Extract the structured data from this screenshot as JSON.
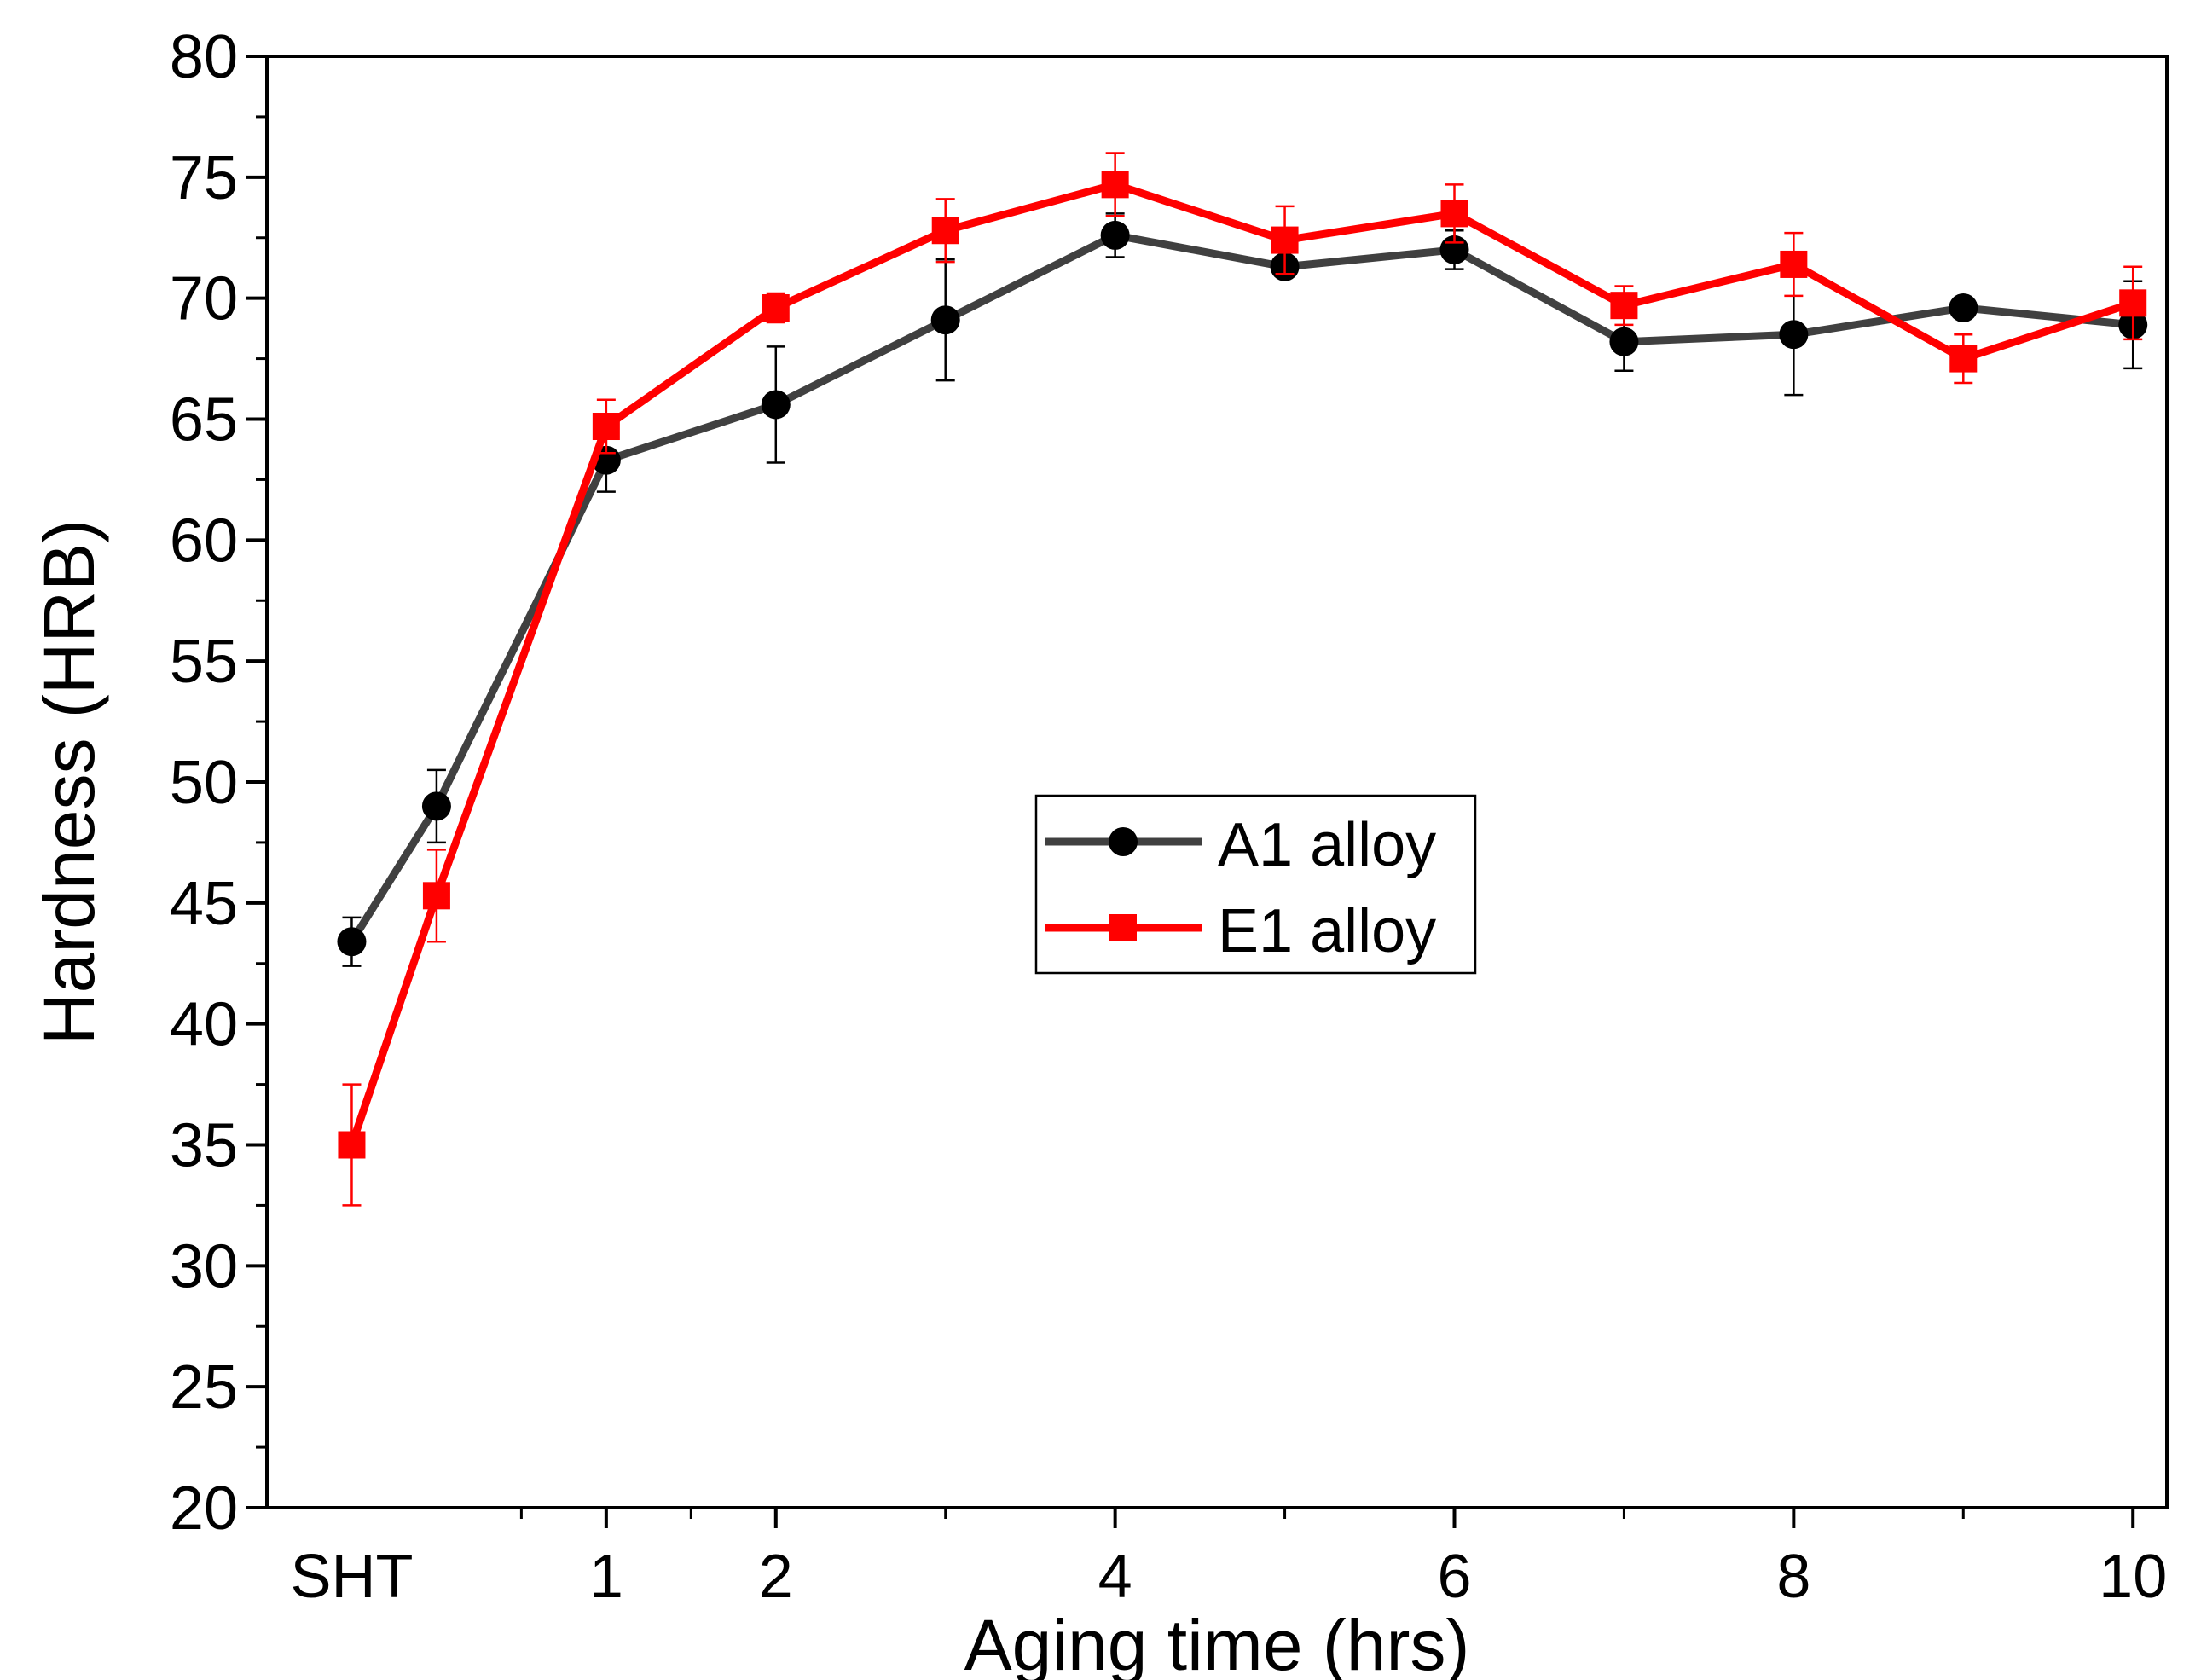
{
  "chart_data": {
    "type": "line",
    "title": "",
    "xlabel": "Aging time (hrs)",
    "ylabel": "Hardness (HRB)",
    "ylim": [
      20,
      80
    ],
    "xlim": [
      -1,
      10.2
    ],
    "yticks": [
      20,
      25,
      30,
      35,
      40,
      45,
      50,
      55,
      60,
      65,
      70,
      75,
      80
    ],
    "xticks": [
      {
        "x": -0.5,
        "label": "SHT"
      },
      {
        "x": 1,
        "label": "1"
      },
      {
        "x": 2,
        "label": "2"
      },
      {
        "x": 4,
        "label": "4"
      },
      {
        "x": 6,
        "label": "6"
      },
      {
        "x": 8,
        "label": "8"
      },
      {
        "x": 10,
        "label": "10"
      }
    ],
    "minor_xticks": [
      0.5,
      1.5,
      3,
      5,
      7,
      9
    ],
    "legend_position": "center",
    "series": [
      {
        "name": "A1 alloy",
        "color": "#404040",
        "marker_color": "#000000",
        "marker": "circle",
        "x": [
          -0.5,
          0,
          1,
          2,
          3,
          4,
          5,
          6,
          7,
          8,
          9,
          10
        ],
        "y": [
          43.4,
          49.0,
          63.3,
          65.6,
          69.1,
          72.6,
          71.3,
          72.0,
          68.2,
          68.5,
          69.6,
          68.9
        ],
        "err": [
          1.0,
          1.5,
          1.3,
          2.4,
          2.5,
          0.9,
          0.4,
          0.8,
          1.2,
          2.5,
          0.3,
          1.8
        ]
      },
      {
        "name": "E1 alloy",
        "color": "#ff0000",
        "marker_color": "#ff0000",
        "marker": "square",
        "x": [
          -0.5,
          0,
          1,
          2,
          3,
          4,
          5,
          6,
          7,
          8,
          9,
          10
        ],
        "y": [
          35.0,
          45.3,
          64.7,
          69.6,
          72.8,
          74.7,
          72.4,
          73.5,
          69.7,
          71.4,
          67.5,
          69.8
        ],
        "err": [
          2.5,
          1.9,
          1.1,
          0.6,
          1.3,
          1.3,
          1.4,
          1.2,
          0.8,
          1.3,
          1.0,
          1.5
        ]
      }
    ]
  }
}
